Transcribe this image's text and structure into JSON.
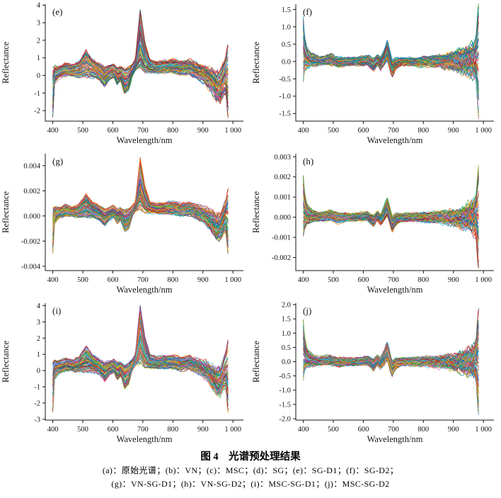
{
  "figure": {
    "caption_title": "图 4　光谱预处理结果",
    "caption_line1": "(a)：原始光谱；(b)：VN；(c)：MSC；(d)：SG；(e)：SG-D1；(f)：SG-D2；",
    "caption_line2": "(g)：VN-SG-D1；(h)：VN-SG-D2；(i)：MSC-SG-D1；(j)：MSC-SG-D2"
  },
  "chart_data": {
    "type": "line",
    "description": "Six subplots of preprocessed hyperspectral reflectance curves (many overlaid sample spectra) versus wavelength",
    "xlabel": "Wavelength/nm",
    "ylabel": "Reflectance",
    "xlim": [
      375,
      1035
    ],
    "x_data_range": [
      400,
      984
    ],
    "x_ticks": [
      400,
      500,
      600,
      700,
      800,
      900,
      1000
    ],
    "x_tick_labels": [
      "400",
      "500",
      "600",
      "700",
      "800",
      "900",
      "1 000"
    ],
    "grid": false,
    "legend": "none",
    "lines_per_plot": 75,
    "line_palette": [
      "#0072bd",
      "#d95319",
      "#edb120",
      "#7e2f8e",
      "#77ac30",
      "#4dbeee",
      "#a2142f",
      "#1f77b4",
      "#ff7f0e",
      "#2ca02c",
      "#d62728",
      "#9467bd",
      "#e377c2",
      "#17becf",
      "#bcbd22",
      "#008080"
    ],
    "base_profiles": {
      "sg_d1": [
        [
          400,
          -0.95,
          1.45,
          0.05
        ],
        [
          406,
          0.05,
          0.5,
          0.1
        ],
        [
          420,
          0.2,
          0.3,
          0.1
        ],
        [
          442,
          0.35,
          0.35,
          0.1
        ],
        [
          465,
          0.27,
          0.28,
          0.09
        ],
        [
          487,
          0.35,
          0.4,
          0.1
        ],
        [
          511,
          0.68,
          0.72,
          0.1
        ],
        [
          532,
          0.42,
          0.46,
          0.1
        ],
        [
          556,
          0.2,
          0.42,
          0.1
        ],
        [
          573,
          -0.1,
          0.5,
          0.1
        ],
        [
          589,
          0.15,
          0.36,
          0.1
        ],
        [
          603,
          0.28,
          0.35,
          0.09
        ],
        [
          615,
          -0.05,
          0.45,
          0.1
        ],
        [
          626,
          0.12,
          0.36,
          0.09
        ],
        [
          639,
          -0.35,
          0.66,
          0.1
        ],
        [
          653,
          -0.18,
          0.6,
          0.1
        ],
        [
          665,
          0.3,
          0.3,
          0.08
        ],
        [
          675,
          0.62,
          0.3,
          0.08
        ],
        [
          691,
          2.1,
          1.65,
          0.08
        ],
        [
          707,
          1.05,
          0.85,
          0.08
        ],
        [
          723,
          0.55,
          0.35,
          0.08
        ],
        [
          747,
          0.45,
          0.3,
          0.08
        ],
        [
          772,
          0.5,
          0.32,
          0.09
        ],
        [
          801,
          0.52,
          0.35,
          0.1
        ],
        [
          827,
          0.42,
          0.35,
          0.11
        ],
        [
          856,
          0.46,
          0.38,
          0.12
        ],
        [
          881,
          0.25,
          0.38,
          0.14
        ],
        [
          906,
          0.03,
          0.42,
          0.18
        ],
        [
          926,
          -0.28,
          0.55,
          0.22
        ],
        [
          946,
          -0.68,
          0.7,
          0.26
        ],
        [
          959,
          -0.65,
          0.75,
          0.26
        ],
        [
          969,
          -0.22,
          0.8,
          0.24
        ],
        [
          977,
          0.0,
          1.0,
          0.18
        ],
        [
          983,
          -0.35,
          2.05,
          0.08
        ]
      ],
      "sg_d2": [
        [
          400,
          0.35,
          0.92,
          0.05
        ],
        [
          404,
          0.22,
          0.5,
          0.08
        ],
        [
          412,
          0.1,
          0.28,
          0.08
        ],
        [
          428,
          0.04,
          0.16,
          0.06
        ],
        [
          455,
          0.01,
          0.1,
          0.05
        ],
        [
          490,
          0.06,
          0.13,
          0.05
        ],
        [
          516,
          -0.02,
          0.12,
          0.05
        ],
        [
          547,
          0.0,
          0.1,
          0.04
        ],
        [
          582,
          0.01,
          0.1,
          0.04
        ],
        [
          614,
          0.04,
          0.12,
          0.05
        ],
        [
          634,
          -0.1,
          0.16,
          0.05
        ],
        [
          647,
          0.04,
          0.13,
          0.05
        ],
        [
          658,
          -0.07,
          0.16,
          0.05
        ],
        [
          669,
          0.12,
          0.2,
          0.05
        ],
        [
          680,
          0.33,
          0.27,
          0.05
        ],
        [
          689,
          0.0,
          0.25,
          0.05
        ],
        [
          696,
          -0.22,
          0.22,
          0.05
        ],
        [
          708,
          -0.06,
          0.14,
          0.05
        ],
        [
          727,
          0.0,
          0.1,
          0.04
        ],
        [
          762,
          0.0,
          0.1,
          0.05
        ],
        [
          801,
          0.0,
          0.11,
          0.06
        ],
        [
          841,
          0.0,
          0.13,
          0.08
        ],
        [
          876,
          0.0,
          0.16,
          0.1
        ],
        [
          906,
          0.0,
          0.2,
          0.13
        ],
        [
          931,
          0.0,
          0.26,
          0.16
        ],
        [
          951,
          0.02,
          0.32,
          0.18
        ],
        [
          966,
          0.03,
          0.4,
          0.2
        ],
        [
          975,
          0.05,
          0.55,
          0.18
        ],
        [
          983,
          0.0,
          1.6,
          0.08
        ]
      ]
    },
    "subplots": [
      {
        "label": "(e)",
        "name": "SG-D1",
        "profile": "sg_d1",
        "scale": 1.0,
        "ylim": [
          -2.6,
          4.05
        ],
        "y_ticks": [
          4,
          3,
          2,
          1,
          0,
          -1,
          -2
        ],
        "y_tick_labels": [
          "4",
          "3",
          "2",
          "1",
          "0",
          "-1",
          "-2"
        ],
        "peak": {
          "x": 691,
          "max": 3.75
        },
        "edge_spikes": {
          "x400_min": -2.4,
          "x980_range": [
            -2.45,
            1.75
          ]
        }
      },
      {
        "label": "(f)",
        "name": "SG-D2",
        "profile": "sg_d2",
        "scale": 1.0,
        "ylim": [
          -1.72,
          1.65
        ],
        "y_ticks": [
          1.5,
          1.0,
          0.5,
          0.0,
          -0.5,
          -1.0,
          -1.5
        ],
        "y_tick_labels": [
          "1.5",
          "1.0",
          "0.5",
          "0.0",
          "-0.5",
          "-1.0",
          "-1.5"
        ],
        "peak": {
          "x": 680,
          "max": 0.57
        },
        "edge_spikes": {
          "x400_range": [
            -0.5,
            1.25
          ],
          "x980_range": [
            -1.6,
            1.6
          ]
        }
      },
      {
        "label": "(g)",
        "name": "VN-SG-D1",
        "profile": "sg_d1",
        "scale": 0.00124,
        "ylim": [
          -0.00435,
          0.00495
        ],
        "y_ticks": [
          0.004,
          0.002,
          0,
          -0.002,
          -0.004
        ],
        "y_tick_labels": [
          "0.004",
          "0.002",
          "0.000",
          "-0.002",
          "-0.004"
        ],
        "peak": {
          "x": 691,
          "max": 0.0047
        },
        "edge_spikes": {
          "x400_min": -0.003,
          "x980_range": [
            -0.0038,
            0.0027
          ]
        }
      },
      {
        "label": "(h)",
        "name": "VN-SG-D2",
        "profile": "sg_d2",
        "scale": 0.0016,
        "ylim": [
          -0.00265,
          0.00315
        ],
        "y_ticks": [
          0.003,
          0.002,
          0.001,
          0,
          -0.001,
          -0.002
        ],
        "y_tick_labels": [
          "0.003",
          "0.002",
          "0.001",
          "0.000",
          "-0.001",
          "-0.002"
        ],
        "peak": {
          "x": 680,
          "max": 0.0007
        },
        "edge_spikes": {
          "x400_range": [
            -0.0008,
            0.0016
          ],
          "x980_range": [
            -0.0025,
            0.003
          ]
        }
      },
      {
        "label": "(i)",
        "name": "MSC-SG-D1",
        "profile": "sg_d1",
        "scale": 1.06,
        "ylim": [
          -3.05,
          4.15
        ],
        "y_ticks": [
          4,
          3,
          2,
          1,
          0,
          -1,
          -2,
          -3
        ],
        "y_tick_labels": [
          "4",
          "3",
          "2",
          "1",
          "0",
          "-1",
          "-2",
          "-3"
        ],
        "peak": {
          "x": 691,
          "max": 4.0
        },
        "edge_spikes": {
          "x400_min": -2.7,
          "x980_range": [
            -2.7,
            2.1
          ]
        }
      },
      {
        "label": "(j)",
        "name": "MSC-SG-D2",
        "profile": "sg_d2",
        "scale": 1.15,
        "ylim": [
          -2.05,
          2.05
        ],
        "y_ticks": [
          2.0,
          1.5,
          1.0,
          0.5,
          0.0,
          -0.5,
          -1.0,
          -1.5,
          -2.0
        ],
        "y_tick_labels": [
          "2.0",
          "1.5",
          "1.0",
          "0.5",
          "0.0",
          "-0.5",
          "-1.0",
          "-1.5",
          "-2.0"
        ],
        "peak": {
          "x": 680,
          "max": 0.6
        },
        "edge_spikes": {
          "x400_range": [
            -0.55,
            1.45
          ],
          "x980_range": [
            -1.85,
            1.85
          ]
        }
      }
    ]
  }
}
